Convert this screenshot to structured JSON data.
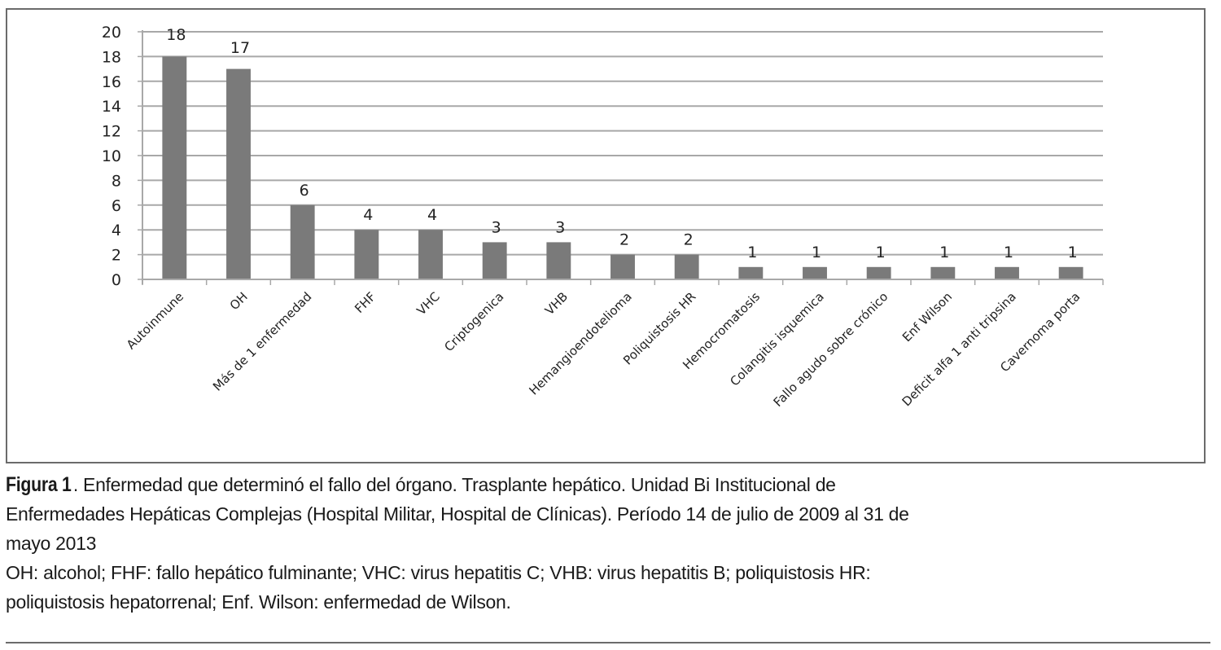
{
  "chart_data": {
    "type": "bar",
    "title": "",
    "xlabel": "",
    "ylabel": "",
    "ylim": [
      0,
      20
    ],
    "yticks": [
      "0",
      "2",
      "4",
      "6",
      "8",
      "10",
      "12",
      "14",
      "16",
      "18",
      "20"
    ],
    "grid": true,
    "legend": "none",
    "bar_color": "#7a7a7a",
    "categories": [
      "Autoinmune",
      "OH",
      "Más de 1 enfermedad",
      "FHF",
      "VHC",
      "Criptogenica",
      "VHB",
      "Hemangioendotelioma",
      "Poliquistosis HR",
      "Hemocromatosis",
      "Colangitis isquemica",
      "Fallo agudo sobre crónico",
      "Enf Wilson",
      "Deficit alfa 1  anti tripsina",
      "Cavernoma porta"
    ],
    "values": [
      18,
      17,
      6,
      4,
      4,
      3,
      3,
      2,
      2,
      1,
      1,
      1,
      1,
      1,
      1
    ],
    "data_labels": [
      "18",
      "17",
      "6",
      "4",
      "4",
      "3",
      "3",
      "2",
      "2",
      "1",
      "1",
      "1",
      "1",
      "1",
      "1"
    ]
  },
  "caption": {
    "figure_label": "Figura 1",
    "line1_rest": ". Enfermedad que determinó el fallo del órgano. Trasplante hepático. Unidad Bi Institucional de",
    "line2": "Enfermedades Hepáticas Complejas (Hospital Militar, Hospital de Clínicas). Período 14 de julio de 2009 al 31 de",
    "line3": "mayo 2013",
    "line4": "OH: alcohol; FHF: fallo hepático fulminante; VHC: virus hepatitis C; VHB: virus hepatitis B; poliquistosis HR:",
    "line5": "poliquistosis hepatorrenal; Enf. Wilson: enfermedad de Wilson."
  }
}
